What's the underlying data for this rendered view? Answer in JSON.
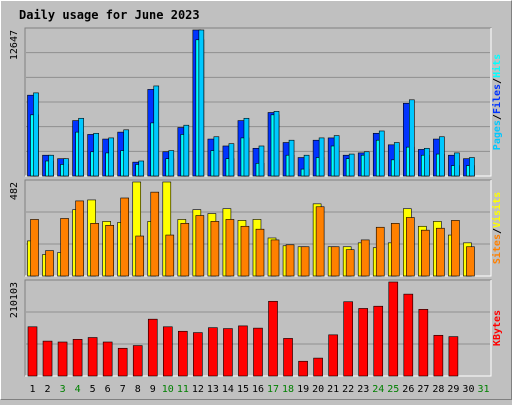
{
  "chart_data": [
    {
      "type": "bar",
      "title": "Daily usage for June 2023",
      "categories": [
        "1",
        "2",
        "3",
        "4",
        "5",
        "6",
        "7",
        "8",
        "9",
        "10",
        "11",
        "12",
        "13",
        "14",
        "15",
        "16",
        "17",
        "18",
        "19",
        "20",
        "21",
        "22",
        "23",
        "24",
        "25",
        "26",
        "27",
        "28",
        "29",
        "30",
        "31"
      ],
      "ylabel_tick": "12647",
      "legend": [
        "Pages",
        "Files",
        "Hits"
      ],
      "legend_separator": "/",
      "series": [
        {
          "name": "Hits",
          "values": [
            7000,
            1800,
            1500,
            4800,
            3600,
            3200,
            3800,
            1200,
            7500,
            2100,
            4200,
            12647,
            3200,
            2600,
            4800,
            2400,
            5500,
            2900,
            1600,
            3100,
            3300,
            1800,
            2000,
            3700,
            2700,
            6300,
            2300,
            3200,
            1800,
            1500,
            0
          ]
        },
        {
          "name": "Files",
          "values": [
            5300,
            1300,
            1000,
            3800,
            2100,
            2000,
            2200,
            1000,
            4600,
            1500,
            3600,
            11800,
            2200,
            1500,
            3300,
            1100,
            5300,
            1800,
            600,
            1600,
            2600,
            1500,
            1800,
            3100,
            1400,
            2500,
            1800,
            1900,
            900,
            900,
            0
          ]
        },
        {
          "name": "Pages",
          "values": [
            7200,
            1800,
            1500,
            5000,
            3700,
            3300,
            4000,
            1300,
            7800,
            2200,
            4400,
            13000,
            3400,
            2800,
            5000,
            2600,
            5600,
            3100,
            1800,
            3300,
            3500,
            1900,
            2100,
            3900,
            2900,
            6600,
            2400,
            3400,
            2000,
            1600,
            0
          ]
        }
      ]
    },
    {
      "type": "bar",
      "ylabel_tick": "482",
      "legend": [
        "Sites",
        "Visits"
      ],
      "legend_separator": "/",
      "series": [
        {
          "name": "Visits",
          "values": [
            180,
            110,
            120,
            340,
            390,
            280,
            275,
            485,
            280,
            485,
            290,
            340,
            320,
            345,
            285,
            290,
            195,
            155,
            150,
            370,
            150,
            150,
            170,
            145,
            170,
            345,
            255,
            280,
            210,
            170,
            0
          ]
        },
        {
          "name": "Sites",
          "values": [
            290,
            130,
            295,
            385,
            270,
            260,
            400,
            205,
            430,
            210,
            270,
            310,
            280,
            290,
            255,
            240,
            185,
            160,
            150,
            355,
            150,
            135,
            185,
            250,
            270,
            300,
            235,
            245,
            285,
            150,
            0
          ]
        }
      ]
    },
    {
      "type": "bar",
      "ylabel_tick": "210103",
      "legend": [
        "KBytes"
      ],
      "series": [
        {
          "name": "KBytes",
          "values": [
            110000,
            78000,
            76000,
            82000,
            86000,
            76000,
            62000,
            68000,
            127000,
            110000,
            100000,
            97000,
            108000,
            106000,
            112000,
            107000,
            167000,
            84000,
            33000,
            40000,
            92000,
            166000,
            151000,
            156000,
            210103,
            183000,
            149000,
            91000,
            88000,
            0,
            0
          ]
        }
      ]
    }
  ],
  "x_axis": {
    "labels": [
      "1",
      "2",
      "3",
      "4",
      "5",
      "6",
      "7",
      "8",
      "9",
      "10",
      "11",
      "12",
      "13",
      "14",
      "15",
      "16",
      "17",
      "18",
      "19",
      "20",
      "21",
      "22",
      "23",
      "24",
      "25",
      "26",
      "27",
      "28",
      "29",
      "30",
      "31"
    ],
    "weekend_days": [
      3,
      4,
      10,
      11,
      17,
      18,
      24,
      25,
      31
    ]
  },
  "colors": {
    "background": "#c0c0c0",
    "plot_background": "#c0c0c0",
    "gridline": "#8f8f8f",
    "frame_dark": "#808080",
    "frame_light": "#ffffff",
    "title": "#0000ff",
    "weekday_label": "#000000",
    "weekend_label": "#008000",
    "hits": "#00ffff",
    "files": "#0033ff",
    "pages": "#00c8ff",
    "visits": "#ffff00",
    "sites": "#ff8000",
    "kbytes": "#ff0000",
    "bar_edge": "#000000",
    "legend_separator": "#000000"
  }
}
